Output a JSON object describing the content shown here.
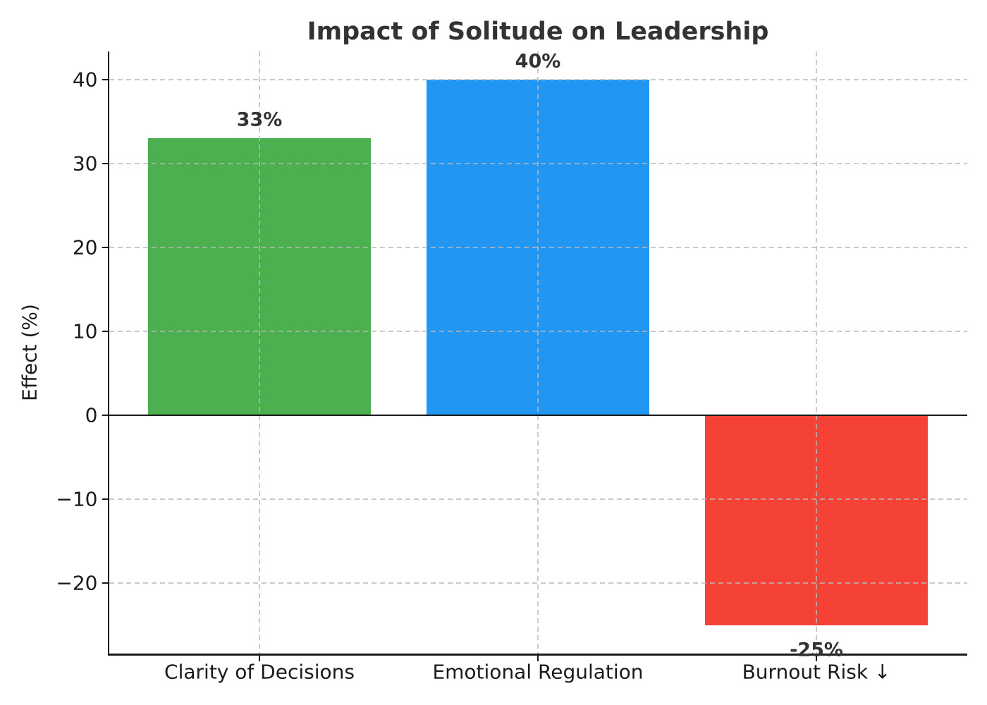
{
  "title": "Impact of Solitude on Leadership",
  "chart_data": {
    "type": "bar",
    "title": "Impact of Solitude on Leadership",
    "categories": [
      "Clarity of Decisions",
      "Emotional Regulation",
      "Burnout Risk ↓"
    ],
    "values": [
      33,
      40,
      -25
    ],
    "bar_labels": [
      "33%",
      "40%",
      "-25%"
    ],
    "bar_colors": [
      "#4CAF50",
      "#2196F3",
      "#F44336"
    ],
    "xlabel": "",
    "ylabel": "Effect (%)",
    "ylim": [
      -28.25,
      43.25
    ],
    "yticks": [
      40,
      30,
      20,
      10,
      0,
      -10,
      -20
    ],
    "ytick_labels": [
      "40",
      "30",
      "20",
      "10",
      "0",
      "−10",
      "−20"
    ],
    "grid": "dashed, both axes, drawn above bars",
    "zero_line": true,
    "legend": "none",
    "background": "#ffffff"
  },
  "colors": {
    "grid": "#cccccc",
    "axis": "#1a1a1a",
    "title_text": "#333333",
    "tick_text": "#1a1a1a",
    "value_label_text": "#333333",
    "background": "#ffffff"
  }
}
